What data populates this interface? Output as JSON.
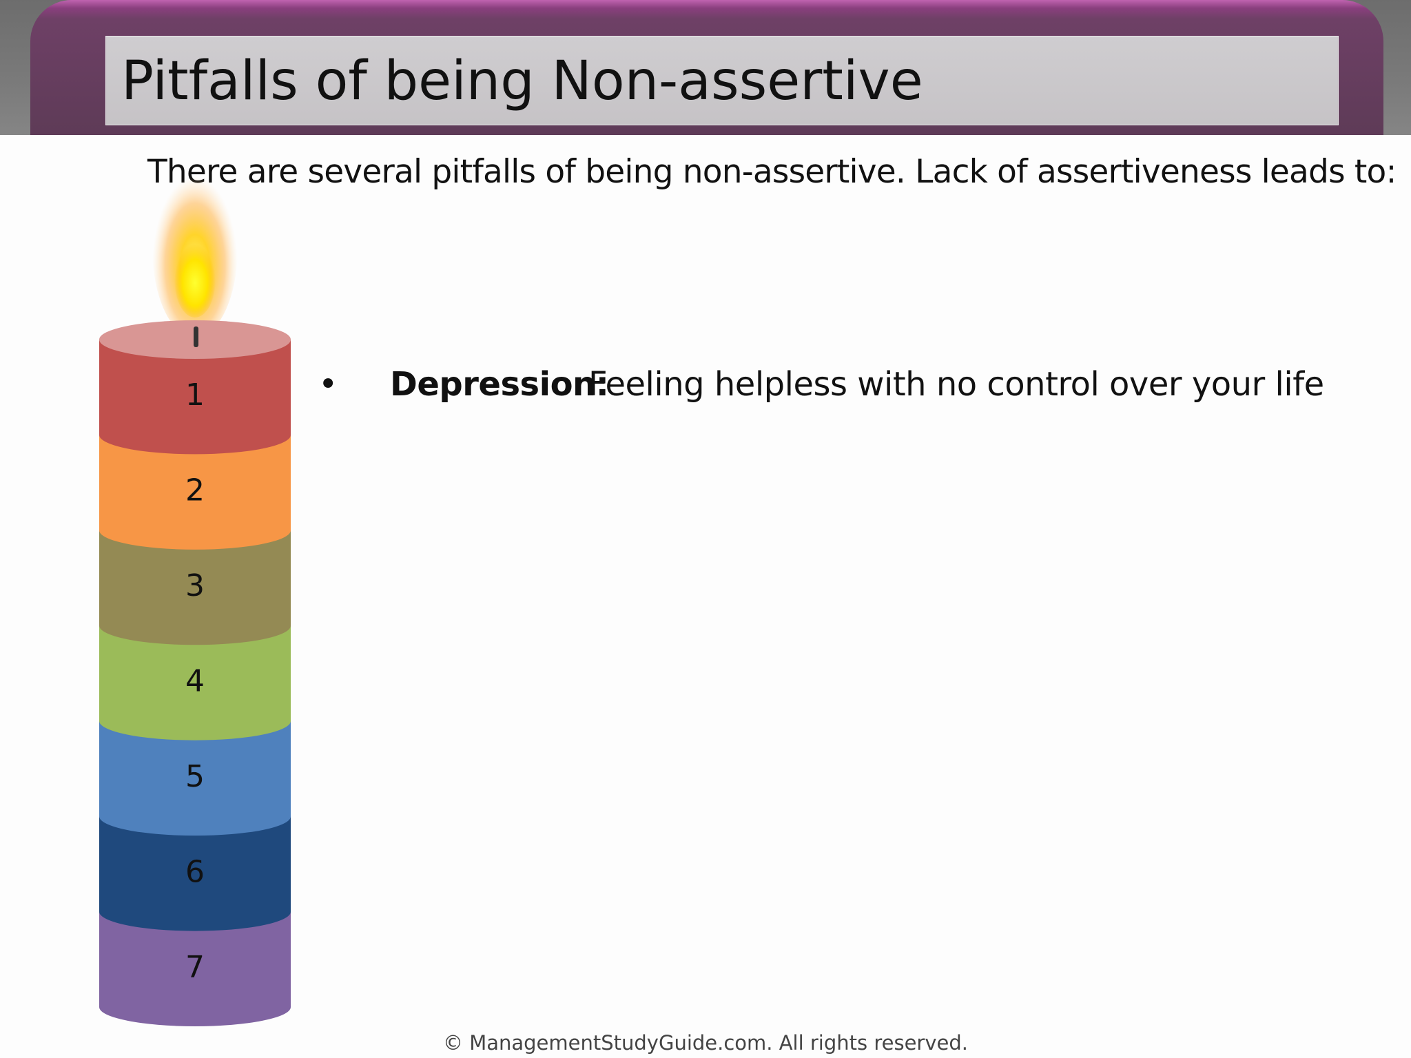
{
  "slide": {
    "title": "Pitfalls of being Non-assertive",
    "intro": "There are several pitfalls of being non-assertive. Lack of assertiveness leads to:",
    "candle_segments": [
      {
        "label": "1",
        "color": "#c0504d"
      },
      {
        "label": "2",
        "color": "#f79646"
      },
      {
        "label": "3",
        "color": "#948a54"
      },
      {
        "label": "4",
        "color": "#9bbb59"
      },
      {
        "label": "5",
        "color": "#4f81bd"
      },
      {
        "label": "6",
        "color": "#1f497d"
      },
      {
        "label": "7",
        "color": "#8064a2"
      }
    ],
    "bullet": {
      "symbol": "•",
      "term": "Depression:",
      "description": "Feeling helpless with no control over your life"
    },
    "footer": "© ManagementStudyGuide.com. All rights reserved."
  },
  "colors": {
    "frame": "#6e4066",
    "title_box": "#c9c6c9",
    "flame": "#ffd700"
  }
}
